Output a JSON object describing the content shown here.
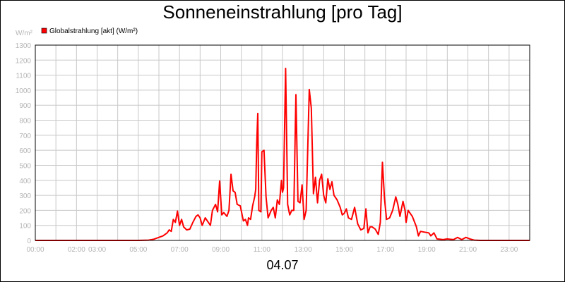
{
  "chart_data": {
    "type": "line",
    "title": "Sonneneinstrahlung [pro Tag]",
    "ylabel": "W/m²",
    "xlabel": "04.07",
    "ylim": [
      0,
      1300
    ],
    "xlim": [
      0,
      24
    ],
    "grid": true,
    "legend_position": "top-left",
    "y_ticks": [
      0,
      100,
      200,
      300,
      400,
      500,
      600,
      700,
      800,
      900,
      1000,
      1100,
      1200,
      1300
    ],
    "x_ticks": [
      {
        "pos": 0,
        "label": "00:00"
      },
      {
        "pos": 2,
        "label": "02:00"
      },
      {
        "pos": 3,
        "label": "03:00"
      },
      {
        "pos": 5,
        "label": "05:00"
      },
      {
        "pos": 7,
        "label": "07:00"
      },
      {
        "pos": 9,
        "label": "09:00"
      },
      {
        "pos": 11,
        "label": "11:00"
      },
      {
        "pos": 13,
        "label": "13:00"
      },
      {
        "pos": 15,
        "label": "15:00"
      },
      {
        "pos": 17,
        "label": "17:00"
      },
      {
        "pos": 19,
        "label": "19:00"
      },
      {
        "pos": 21,
        "label": "21:00"
      },
      {
        "pos": 23,
        "label": "23:00"
      }
    ],
    "series": [
      {
        "name": "Globalstrahlung [akt] (W/m²)",
        "color": "#ff0000",
        "points": [
          [
            0,
            0
          ],
          [
            5.0,
            0
          ],
          [
            5.5,
            2
          ],
          [
            5.75,
            8
          ],
          [
            6.0,
            20
          ],
          [
            6.2,
            30
          ],
          [
            6.4,
            50
          ],
          [
            6.5,
            70
          ],
          [
            6.6,
            60
          ],
          [
            6.7,
            140
          ],
          [
            6.8,
            120
          ],
          [
            6.9,
            195
          ],
          [
            7.0,
            100
          ],
          [
            7.1,
            140
          ],
          [
            7.2,
            90
          ],
          [
            7.35,
            70
          ],
          [
            7.5,
            75
          ],
          [
            7.65,
            120
          ],
          [
            7.8,
            160
          ],
          [
            7.9,
            170
          ],
          [
            8.0,
            150
          ],
          [
            8.1,
            100
          ],
          [
            8.25,
            150
          ],
          [
            8.4,
            120
          ],
          [
            8.5,
            100
          ],
          [
            8.6,
            200
          ],
          [
            8.75,
            240
          ],
          [
            8.85,
            190
          ],
          [
            8.95,
            395
          ],
          [
            9.05,
            170
          ],
          [
            9.15,
            185
          ],
          [
            9.3,
            160
          ],
          [
            9.4,
            200
          ],
          [
            9.5,
            440
          ],
          [
            9.6,
            330
          ],
          [
            9.7,
            320
          ],
          [
            9.8,
            240
          ],
          [
            9.95,
            230
          ],
          [
            10.1,
            130
          ],
          [
            10.2,
            140
          ],
          [
            10.3,
            100
          ],
          [
            10.35,
            150
          ],
          [
            10.45,
            140
          ],
          [
            10.55,
            230
          ],
          [
            10.65,
            290
          ],
          [
            10.7,
            340
          ],
          [
            10.75,
            640
          ],
          [
            10.8,
            845
          ],
          [
            10.85,
            200
          ],
          [
            10.95,
            190
          ],
          [
            11.0,
            590
          ],
          [
            11.1,
            600
          ],
          [
            11.2,
            290
          ],
          [
            11.3,
            150
          ],
          [
            11.45,
            200
          ],
          [
            11.55,
            220
          ],
          [
            11.65,
            150
          ],
          [
            11.75,
            270
          ],
          [
            11.85,
            240
          ],
          [
            11.95,
            400
          ],
          [
            12.0,
            320
          ],
          [
            12.05,
            350
          ],
          [
            12.15,
            1145
          ],
          [
            12.25,
            240
          ],
          [
            12.35,
            170
          ],
          [
            12.45,
            200
          ],
          [
            12.55,
            200
          ],
          [
            12.65,
            970
          ],
          [
            12.75,
            260
          ],
          [
            12.85,
            250
          ],
          [
            12.95,
            370
          ],
          [
            13.05,
            140
          ],
          [
            13.15,
            200
          ],
          [
            13.3,
            1005
          ],
          [
            13.4,
            880
          ],
          [
            13.5,
            310
          ],
          [
            13.6,
            420
          ],
          [
            13.7,
            250
          ],
          [
            13.8,
            400
          ],
          [
            13.9,
            440
          ],
          [
            14.0,
            300
          ],
          [
            14.1,
            250
          ],
          [
            14.2,
            410
          ],
          [
            14.3,
            340
          ],
          [
            14.4,
            390
          ],
          [
            14.5,
            300
          ],
          [
            14.65,
            270
          ],
          [
            14.8,
            220
          ],
          [
            14.9,
            170
          ],
          [
            15.0,
            180
          ],
          [
            15.1,
            210
          ],
          [
            15.2,
            150
          ],
          [
            15.35,
            140
          ],
          [
            15.5,
            220
          ],
          [
            15.65,
            110
          ],
          [
            15.8,
            70
          ],
          [
            15.95,
            80
          ],
          [
            16.05,
            210
          ],
          [
            16.15,
            50
          ],
          [
            16.25,
            90
          ],
          [
            16.35,
            90
          ],
          [
            16.5,
            75
          ],
          [
            16.65,
            40
          ],
          [
            16.75,
            120
          ],
          [
            16.85,
            520
          ],
          [
            16.95,
            280
          ],
          [
            17.05,
            140
          ],
          [
            17.2,
            150
          ],
          [
            17.35,
            200
          ],
          [
            17.5,
            290
          ],
          [
            17.6,
            240
          ],
          [
            17.7,
            160
          ],
          [
            17.85,
            260
          ],
          [
            17.95,
            200
          ],
          [
            18.0,
            120
          ],
          [
            18.1,
            200
          ],
          [
            18.3,
            160
          ],
          [
            18.5,
            90
          ],
          [
            18.6,
            30
          ],
          [
            18.7,
            60
          ],
          [
            18.9,
            55
          ],
          [
            19.1,
            50
          ],
          [
            19.2,
            30
          ],
          [
            19.35,
            50
          ],
          [
            19.5,
            10
          ],
          [
            19.8,
            5
          ],
          [
            20.0,
            10
          ],
          [
            20.3,
            5
          ],
          [
            20.5,
            20
          ],
          [
            20.7,
            5
          ],
          [
            20.9,
            20
          ],
          [
            21.1,
            10
          ],
          [
            21.3,
            2
          ],
          [
            21.6,
            0
          ],
          [
            24,
            0
          ]
        ]
      }
    ]
  }
}
